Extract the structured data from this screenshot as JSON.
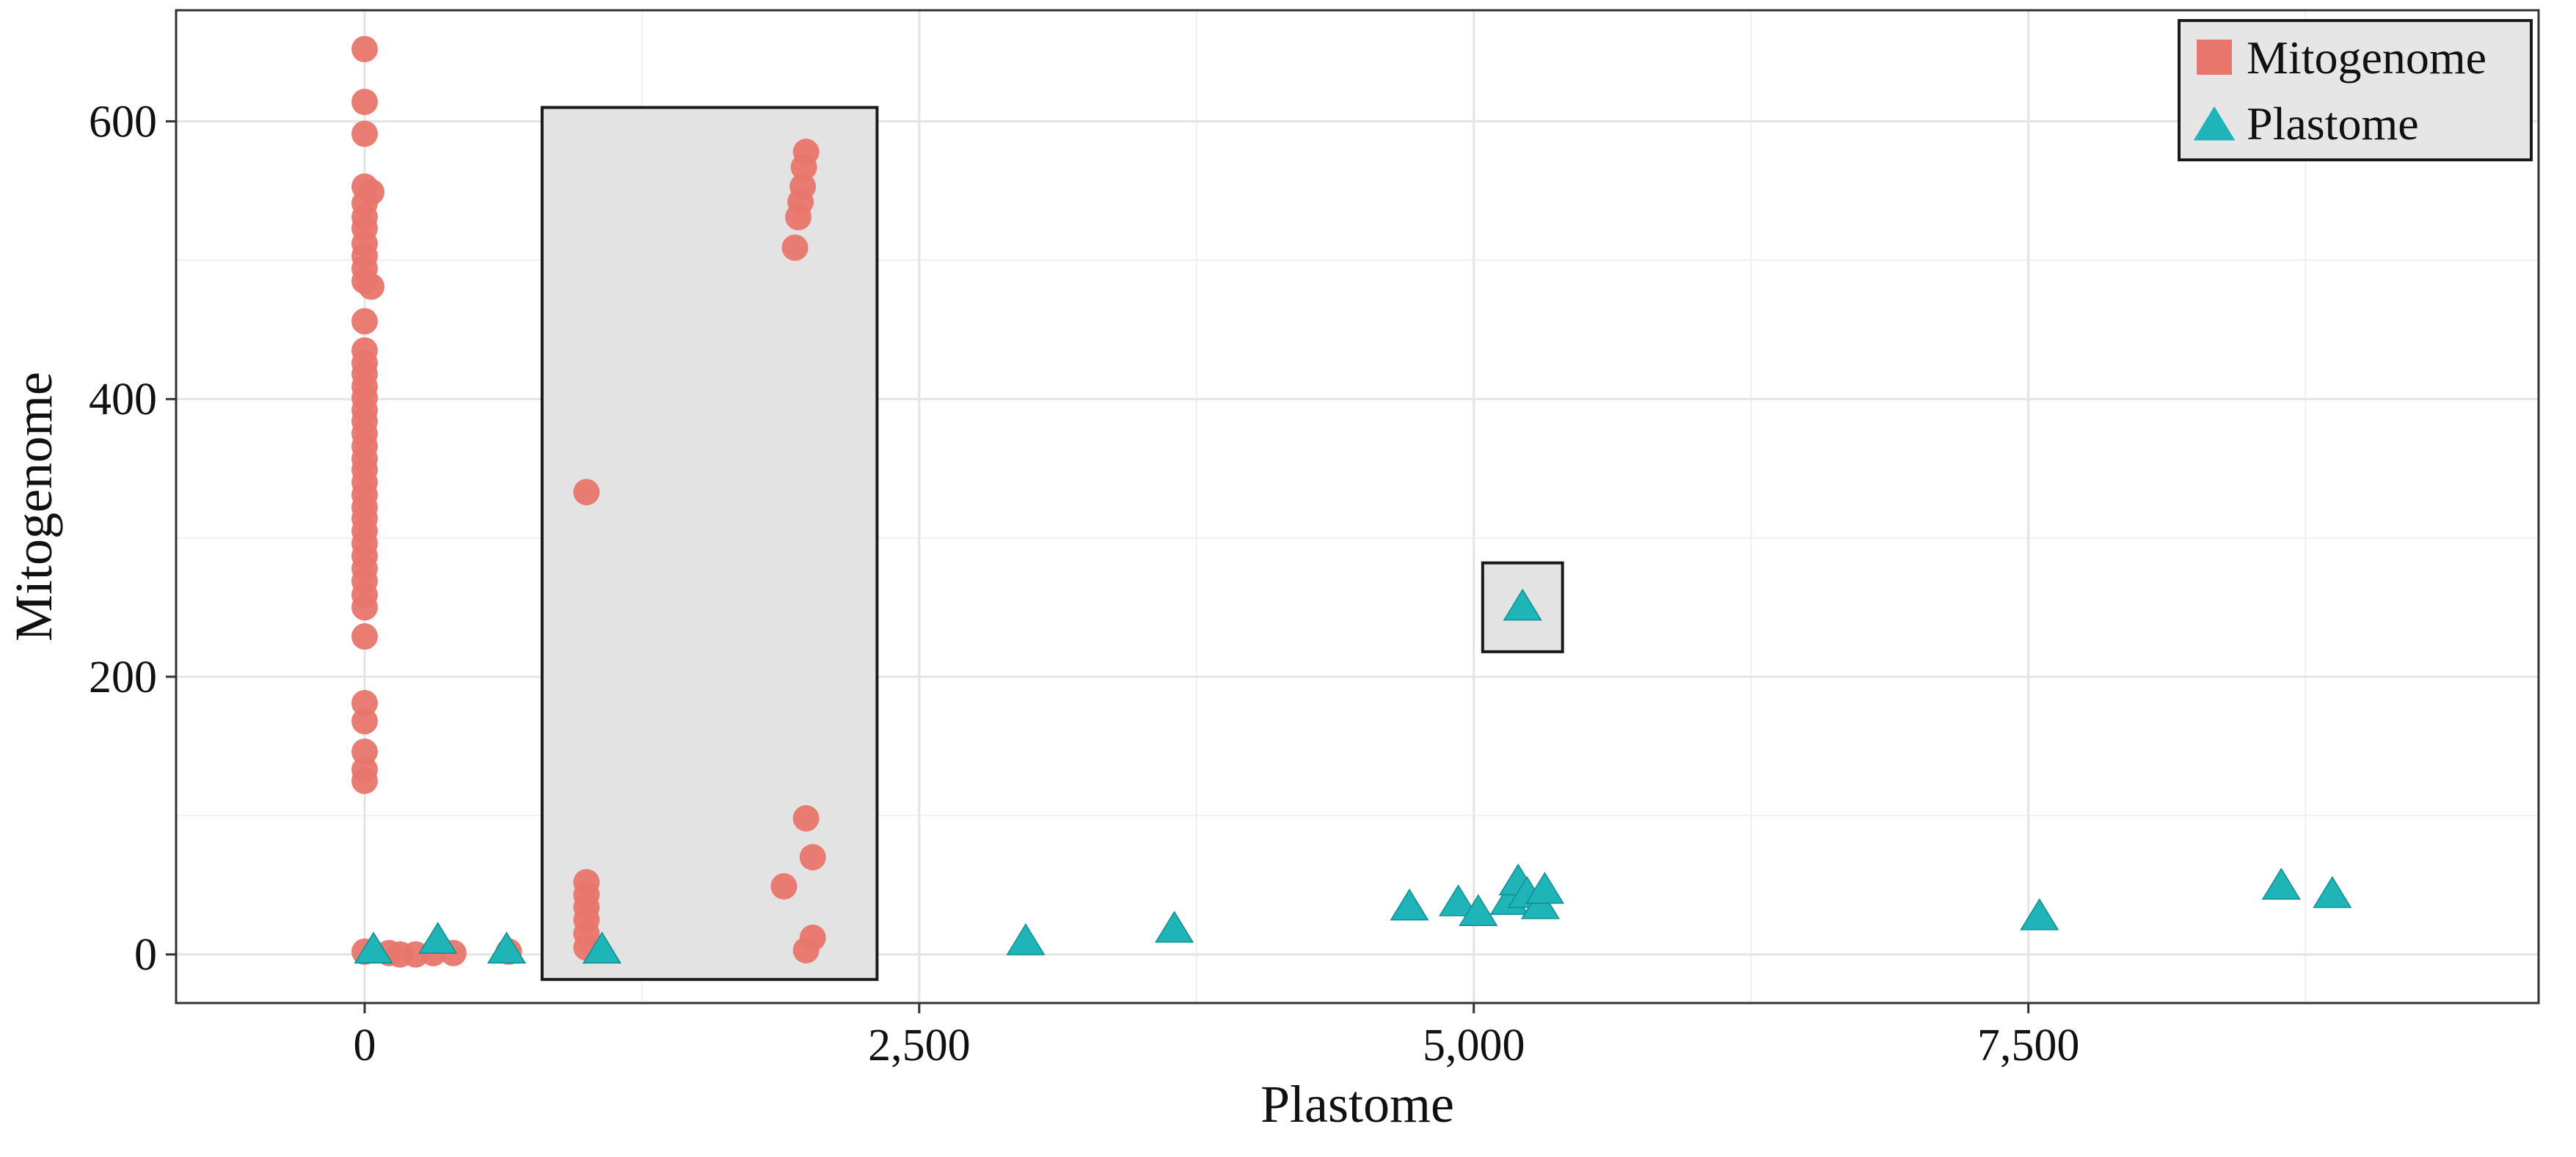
{
  "chart_data": {
    "type": "scatter",
    "title": "",
    "xlabel": "Plastome",
    "ylabel": "Mitogenome",
    "xlim": [
      -850,
      9800
    ],
    "ylim": [
      -35,
      680
    ],
    "x_ticks": [
      0,
      2500,
      5000,
      7500
    ],
    "x_tick_labels": [
      "0",
      "2,500",
      "5,000",
      "7,500"
    ],
    "y_ticks": [
      0,
      200,
      400,
      600
    ],
    "y_tick_labels": [
      "0",
      "200",
      "400",
      "600"
    ],
    "x_minor_ticks": [
      1250,
      3750,
      6250,
      8750
    ],
    "y_minor_ticks": [
      100,
      300,
      500
    ],
    "grid": true,
    "legend_position": "top-right",
    "colors": {
      "Mitogenome": "#e8766d",
      "Plastome": "#1fb5b8"
    },
    "series": [
      {
        "name": "Mitogenome",
        "marker": "circle",
        "points": [
          [
            0,
            652
          ],
          [
            0,
            614
          ],
          [
            0,
            591
          ],
          [
            0,
            553
          ],
          [
            30,
            549
          ],
          [
            0,
            541
          ],
          [
            0,
            531
          ],
          [
            0,
            523
          ],
          [
            0,
            512
          ],
          [
            0,
            503
          ],
          [
            0,
            494
          ],
          [
            0,
            485
          ],
          [
            30,
            481
          ],
          [
            0,
            456
          ],
          [
            0,
            435
          ],
          [
            0,
            426
          ],
          [
            0,
            418
          ],
          [
            0,
            409
          ],
          [
            0,
            401
          ],
          [
            0,
            392
          ],
          [
            0,
            384
          ],
          [
            0,
            375
          ],
          [
            0,
            366
          ],
          [
            0,
            357
          ],
          [
            0,
            349
          ],
          [
            0,
            340
          ],
          [
            0,
            331
          ],
          [
            0,
            322
          ],
          [
            0,
            314
          ],
          [
            0,
            305
          ],
          [
            0,
            296
          ],
          [
            0,
            287
          ],
          [
            0,
            278
          ],
          [
            0,
            269
          ],
          [
            0,
            259
          ],
          [
            0,
            250
          ],
          [
            0,
            229
          ],
          [
            0,
            181
          ],
          [
            0,
            168
          ],
          [
            0,
            146
          ],
          [
            0,
            133
          ],
          [
            0,
            125
          ],
          [
            0,
            2
          ],
          [
            110,
            1
          ],
          [
            160,
            0
          ],
          [
            230,
            0
          ],
          [
            310,
            1
          ],
          [
            400,
            1
          ],
          [
            650,
            2
          ],
          [
            1000,
            333
          ],
          [
            1000,
            52
          ],
          [
            1000,
            43
          ],
          [
            1000,
            34
          ],
          [
            1000,
            25
          ],
          [
            1000,
            15
          ],
          [
            1000,
            5
          ],
          [
            1990,
            578
          ],
          [
            1980,
            567
          ],
          [
            1975,
            553
          ],
          [
            1965,
            542
          ],
          [
            1955,
            531
          ],
          [
            1940,
            509
          ],
          [
            1990,
            98
          ],
          [
            2020,
            70
          ],
          [
            1890,
            49
          ],
          [
            2020,
            12
          ],
          [
            1990,
            3
          ]
        ]
      },
      {
        "name": "Plastome",
        "marker": "triangle",
        "points": [
          [
            40,
            3
          ],
          [
            330,
            10
          ],
          [
            640,
            3
          ],
          [
            1070,
            3
          ],
          [
            2980,
            9
          ],
          [
            3650,
            18
          ],
          [
            4710,
            34
          ],
          [
            4930,
            37
          ],
          [
            5020,
            30
          ],
          [
            5160,
            38
          ],
          [
            5200,
            52
          ],
          [
            5240,
            43
          ],
          [
            5300,
            35
          ],
          [
            5320,
            46
          ],
          [
            5220,
            250
          ],
          [
            7550,
            27
          ],
          [
            8640,
            49
          ],
          [
            8870,
            43
          ]
        ]
      }
    ],
    "annotations": [
      {
        "type": "shaded-box",
        "x": [
          800,
          2310
        ],
        "y": [
          -18,
          610
        ]
      },
      {
        "type": "shaded-box",
        "x": [
          5040,
          5400
        ],
        "y": [
          218,
          282
        ]
      }
    ]
  }
}
